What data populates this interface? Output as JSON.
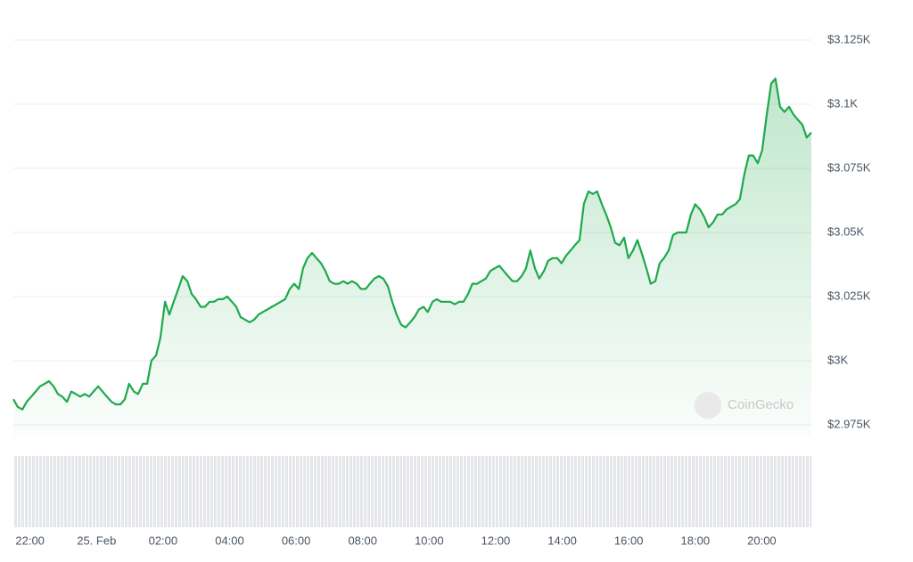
{
  "chart_data": {
    "type": "area",
    "watermark": "CoinGecko",
    "color": "#1ea94b",
    "grid": true,
    "x": [
      -2.5,
      -2.37,
      -2.23,
      -2.1,
      -1.96,
      -1.83,
      -1.7,
      -1.56,
      -1.43,
      -1.29,
      -1.16,
      -1.03,
      -0.89,
      -0.76,
      -0.62,
      -0.49,
      -0.36,
      -0.22,
      -0.09,
      0.05,
      0.18,
      0.31,
      0.45,
      0.58,
      0.72,
      0.85,
      0.98,
      1.12,
      1.25,
      1.39,
      1.52,
      1.65,
      1.79,
      1.92,
      2.06,
      2.19,
      2.32,
      2.46,
      2.59,
      2.73,
      2.86,
      2.99,
      3.13,
      3.26,
      3.4,
      3.53,
      3.66,
      3.8,
      3.93,
      4.07,
      4.2,
      4.33,
      4.47,
      4.6,
      4.74,
      4.87,
      5.0,
      5.14,
      5.27,
      5.41,
      5.54,
      5.67,
      5.81,
      5.94,
      6.08,
      6.21,
      6.34,
      6.48,
      6.61,
      6.75,
      6.88,
      7.01,
      7.15,
      7.28,
      7.42,
      7.55,
      7.68,
      7.82,
      7.95,
      8.09,
      8.22,
      8.35,
      8.49,
      8.62,
      8.76,
      8.89,
      9.02,
      9.16,
      9.29,
      9.43,
      9.56,
      9.69,
      9.83,
      9.96,
      10.1,
      10.23,
      10.36,
      10.5,
      10.63,
      10.77,
      10.9,
      11.03,
      11.17,
      11.3,
      11.44,
      11.57,
      11.7,
      11.84,
      11.97,
      12.11,
      12.24,
      12.37,
      12.51,
      12.64,
      12.78,
      12.91,
      13.04,
      13.18,
      13.31,
      13.45,
      13.58,
      13.71,
      13.85,
      13.98,
      14.12,
      14.25,
      14.38,
      14.52,
      14.65,
      14.79,
      14.92,
      15.05,
      15.19,
      15.32,
      15.46,
      15.59,
      15.72,
      15.86,
      15.99,
      16.13,
      16.26,
      16.39,
      16.53,
      16.66,
      16.8,
      16.93,
      17.06,
      17.2,
      17.33,
      17.47,
      17.6,
      17.73,
      17.87,
      18.0,
      18.14,
      18.27,
      18.4,
      18.54,
      18.67,
      18.81,
      18.94,
      19.07,
      19.21,
      19.34,
      19.48,
      19.61,
      19.74,
      19.88,
      20.01,
      20.15,
      20.28,
      20.41,
      20.55,
      20.68,
      20.82,
      20.95,
      21.08,
      21.22,
      21.35,
      21.49
    ],
    "values": [
      2985,
      2982,
      2981,
      2984,
      2986,
      2988,
      2990,
      2991,
      2992,
      2990,
      2987,
      2986,
      2984,
      2988,
      2987,
      2986,
      2987,
      2986,
      2988,
      2990,
      2988,
      2986,
      2984,
      2983,
      2983,
      2985,
      2991,
      2988,
      2987,
      2991,
      2991,
      3000,
      3002,
      3009,
      3023,
      3018,
      3023,
      3028,
      3033,
      3031,
      3026,
      3024,
      3021,
      3021,
      3023,
      3023,
      3024,
      3024,
      3025,
      3023,
      3021,
      3017,
      3016,
      3015,
      3016,
      3018,
      3019,
      3020,
      3021,
      3022,
      3023,
      3024,
      3028,
      3030,
      3028,
      3036,
      3040,
      3042,
      3040,
      3038,
      3035,
      3031,
      3030,
      3030,
      3031,
      3030,
      3031,
      3030,
      3028,
      3028,
      3030,
      3032,
      3033,
      3032,
      3029,
      3023,
      3018,
      3014,
      3013,
      3015,
      3017,
      3020,
      3021,
      3019,
      3023,
      3024,
      3023,
      3023,
      3023,
      3022,
      3023,
      3023,
      3026,
      3030,
      3030,
      3031,
      3032,
      3035,
      3036,
      3037,
      3035,
      3033,
      3031,
      3031,
      3033,
      3036,
      3043,
      3036,
      3032,
      3035,
      3039,
      3040,
      3040,
      3038,
      3041,
      3043,
      3045,
      3047,
      3061,
      3066,
      3065,
      3066,
      3061,
      3057,
      3052,
      3046,
      3045,
      3048,
      3040,
      3043,
      3047,
      3042,
      3036,
      3030,
      3031,
      3038,
      3040,
      3043,
      3049,
      3050,
      3050,
      3050,
      3057,
      3061,
      3059,
      3056,
      3052,
      3054,
      3057,
      3057,
      3059,
      3060,
      3061,
      3063,
      3073,
      3080,
      3080,
      3077,
      3082,
      3096,
      3108,
      3110,
      3099,
      3097,
      3099,
      3096,
      3094,
      3092,
      3087,
      3089
    ],
    "xlim": [
      -2.5,
      21.49
    ],
    "xticks": [
      {
        "value": -2,
        "label": "22:00"
      },
      {
        "value": 0,
        "label": "25. Feb"
      },
      {
        "value": 2,
        "label": "02:00"
      },
      {
        "value": 4,
        "label": "04:00"
      },
      {
        "value": 6,
        "label": "06:00"
      },
      {
        "value": 8,
        "label": "08:00"
      },
      {
        "value": 10,
        "label": "10:00"
      },
      {
        "value": 12,
        "label": "12:00"
      },
      {
        "value": 14,
        "label": "14:00"
      },
      {
        "value": 16,
        "label": "16:00"
      },
      {
        "value": 18,
        "label": "18:00"
      },
      {
        "value": 20,
        "label": "20:00"
      }
    ],
    "ylim": [
      2975,
      3125
    ],
    "yticks": [
      {
        "value": 3125,
        "label": "$3.125K"
      },
      {
        "value": 3100,
        "label": "$3.1K"
      },
      {
        "value": 3075,
        "label": "$3.075K"
      },
      {
        "value": 3050,
        "label": "$3.05K"
      },
      {
        "value": 3025,
        "label": "$3.025K"
      },
      {
        "value": 3000,
        "label": "$3K"
      },
      {
        "value": 2975,
        "label": "$2.975K"
      }
    ]
  }
}
